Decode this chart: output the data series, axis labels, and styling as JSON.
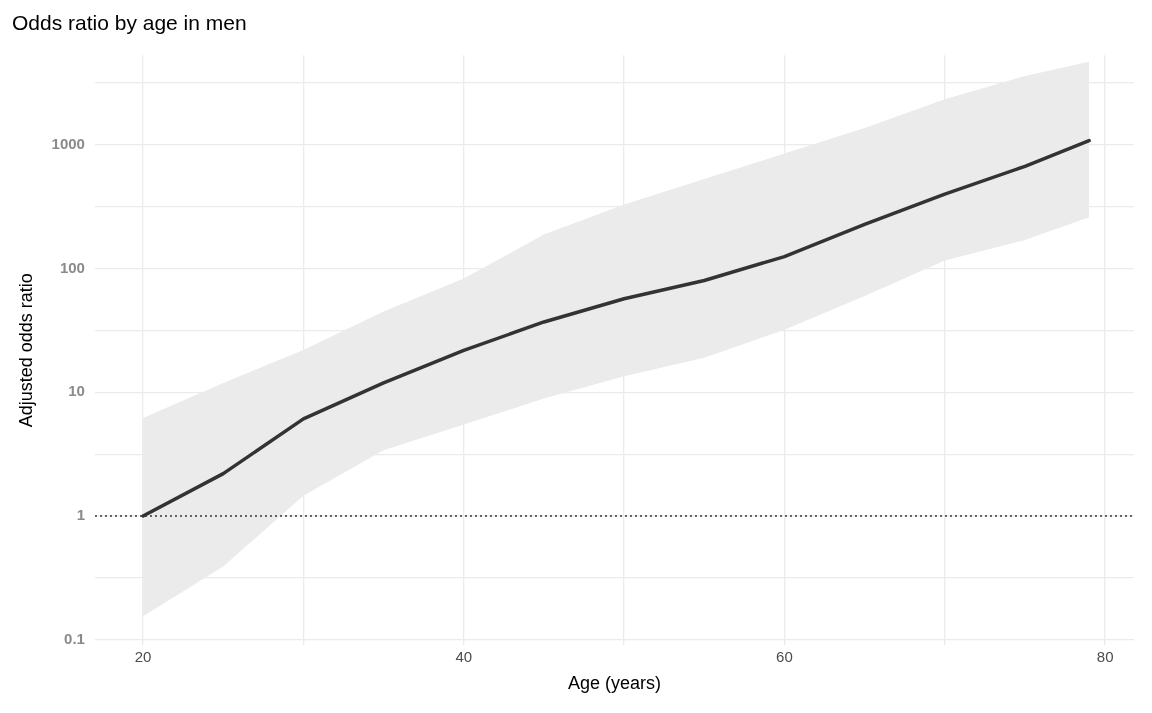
{
  "chart_data": {
    "type": "line",
    "title": "Odds ratio by age in men",
    "xlabel": "Age (years)",
    "ylabel": "Adjusted odds ratio",
    "log": "y",
    "grid": true,
    "legend": false,
    "marker": "none",
    "line_style": "solid",
    "xlim": [
      17,
      81.8
    ],
    "xticks": [
      20,
      {
        "value": 30,
        "label": null
      },
      40,
      {
        "value": 50,
        "label": null
      },
      60,
      {
        "value": 70,
        "label": null
      },
      80
    ],
    "ylim": [
      0.09,
      5300
    ],
    "yticks": [
      0.1,
      {
        "value": 0.316,
        "label": null
      },
      1,
      {
        "value": 3.16,
        "label": null
      },
      10,
      {
        "value": 31.6,
        "label": null
      },
      100,
      {
        "value": 316,
        "label": null
      },
      1000,
      {
        "value": 3162,
        "label": null
      }
    ],
    "ref_lines": [
      {
        "axis": "y",
        "value": 1,
        "line_style": "dotted",
        "color": "#333333"
      }
    ],
    "series": [
      {
        "color": "#333333",
        "x": [
          20,
          25,
          30,
          35,
          40,
          45,
          50,
          55,
          60,
          65,
          70,
          75,
          79
        ],
        "values": [
          1,
          2.2,
          6.1,
          11.9,
          21.8,
          37,
          57,
          80,
          125,
          227,
          400,
          670,
          1080
        ],
        "lower": [
          0.155,
          0.39,
          1.46,
          3.4,
          5.5,
          8.9,
          13.5,
          19,
          32,
          60,
          116,
          170,
          260
        ],
        "upper": [
          6.2,
          11.9,
          22,
          45,
          83,
          188,
          330,
          530,
          850,
          1370,
          2340,
          3600,
          4700
        ]
      }
    ]
  }
}
